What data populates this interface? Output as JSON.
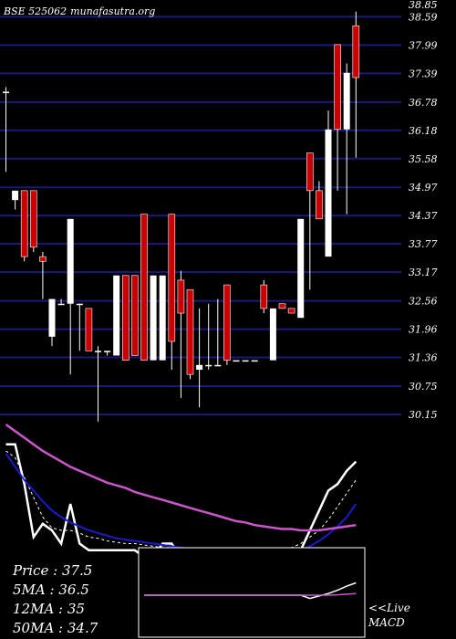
{
  "header": {
    "symbol": "BSE 525062",
    "site": "munafasutra.org"
  },
  "colors": {
    "background": "#000000",
    "gridline": "#1a1a7a",
    "up_candle": "#ffffff",
    "down_candle": "#cc0000",
    "fast_line": "#ffffff",
    "ma_slow": "#1a1acc",
    "ma_long": "#cc55cc",
    "macd_line": "#ffffff",
    "macd_signal": "#cc55cc",
    "macd_box": "#ffffff"
  },
  "chart_data": [
    {
      "type": "candlestick",
      "title": "BSE 525062",
      "y_ticks": [
        38.85,
        38.59,
        37.99,
        37.39,
        36.78,
        36.18,
        35.58,
        34.97,
        34.37,
        33.77,
        33.17,
        32.56,
        31.96,
        31.36,
        30.75,
        30.15
      ],
      "candles": [
        {
          "o": 37.0,
          "h": 37.1,
          "l": 35.3,
          "c": 37.0
        },
        {
          "o": 34.7,
          "h": 34.9,
          "l": 34.5,
          "c": 34.9
        },
        {
          "o": 34.9,
          "h": 34.9,
          "l": 33.4,
          "c": 33.5
        },
        {
          "o": 34.9,
          "h": 34.9,
          "l": 33.6,
          "c": 33.7
        },
        {
          "o": 33.5,
          "h": 33.6,
          "l": 32.6,
          "c": 33.4
        },
        {
          "o": 31.8,
          "h": 32.6,
          "l": 31.6,
          "c": 32.6
        },
        {
          "o": 32.5,
          "h": 32.6,
          "l": 32.5,
          "c": 32.5
        },
        {
          "o": 32.5,
          "h": 34.3,
          "l": 31.0,
          "c": 34.3
        },
        {
          "o": 32.5,
          "h": 32.5,
          "l": 31.5,
          "c": 32.5
        },
        {
          "o": 32.4,
          "h": 32.4,
          "l": 31.5,
          "c": 31.5
        },
        {
          "o": 31.5,
          "h": 31.6,
          "l": 30.0,
          "c": 31.5
        },
        {
          "o": 31.5,
          "h": 31.5,
          "l": 31.4,
          "c": 31.5
        },
        {
          "o": 31.4,
          "h": 33.1,
          "l": 31.4,
          "c": 33.1
        },
        {
          "o": 33.1,
          "h": 33.1,
          "l": 31.3,
          "c": 31.3
        },
        {
          "o": 33.1,
          "h": 33.1,
          "l": 31.4,
          "c": 31.4
        },
        {
          "o": 34.4,
          "h": 34.4,
          "l": 31.3,
          "c": 31.3
        },
        {
          "o": 31.3,
          "h": 33.1,
          "l": 31.3,
          "c": 33.1
        },
        {
          "o": 31.3,
          "h": 33.1,
          "l": 31.3,
          "c": 33.1
        },
        {
          "o": 34.4,
          "h": 34.4,
          "l": 31.1,
          "c": 31.7
        },
        {
          "o": 33.0,
          "h": 33.2,
          "l": 30.5,
          "c": 32.3
        },
        {
          "o": 32.8,
          "h": 32.8,
          "l": 30.9,
          "c": 31.0
        },
        {
          "o": 31.1,
          "h": 32.4,
          "l": 30.3,
          "c": 31.2
        },
        {
          "o": 31.2,
          "h": 32.5,
          "l": 31.1,
          "c": 31.2
        },
        {
          "o": 31.2,
          "h": 32.6,
          "l": 31.2,
          "c": 31.2
        },
        {
          "o": 32.9,
          "h": 32.9,
          "l": 31.2,
          "c": 31.3
        },
        {
          "o": 31.3,
          "h": 31.3,
          "l": 31.3,
          "c": 31.3
        },
        {
          "o": 31.3,
          "h": 31.3,
          "l": 31.3,
          "c": 31.3
        },
        {
          "o": 31.3,
          "h": 31.3,
          "l": 31.3,
          "c": 31.3
        },
        {
          "o": 32.9,
          "h": 33.0,
          "l": 32.3,
          "c": 32.4
        },
        {
          "o": 31.3,
          "h": 32.4,
          "l": 31.3,
          "c": 32.4
        },
        {
          "o": 32.5,
          "h": 32.5,
          "l": 32.4,
          "c": 32.4
        },
        {
          "o": 32.4,
          "h": 32.4,
          "l": 32.3,
          "c": 32.3
        },
        {
          "o": 32.2,
          "h": 34.3,
          "l": 32.2,
          "c": 34.3
        },
        {
          "o": 35.7,
          "h": 35.7,
          "l": 32.8,
          "c": 34.9
        },
        {
          "o": 34.9,
          "h": 35.1,
          "l": 34.3,
          "c": 34.3
        },
        {
          "o": 33.5,
          "h": 36.6,
          "l": 33.5,
          "c": 36.2
        },
        {
          "o": 38.0,
          "h": 38.0,
          "l": 34.9,
          "c": 36.2
        },
        {
          "o": 36.2,
          "h": 37.6,
          "l": 34.4,
          "c": 37.4
        },
        {
          "o": 38.4,
          "h": 38.7,
          "l": 35.6,
          "c": 37.3
        }
      ]
    },
    {
      "type": "line",
      "series": [
        {
          "role": "fast",
          "values": [
            0.15,
            0.15,
            0.45,
            0.85,
            0.75,
            0.8,
            0.9,
            0.6,
            0.9,
            0.95,
            0.95,
            0.95,
            0.95,
            0.95,
            0.95,
            1.0,
            1.0,
            0.9,
            0.9,
            1.0,
            1.0,
            1.0,
            1.0,
            1.0,
            1.0,
            1.0,
            1.0,
            1.0,
            1.0,
            1.0,
            0.98,
            0.96,
            0.95,
            0.8,
            0.65,
            0.5,
            0.45,
            0.35,
            0.28
          ]
        },
        {
          "role": "signal",
          "values": [
            0.2,
            0.25,
            0.4,
            0.55,
            0.7,
            0.78,
            0.8,
            0.8,
            0.82,
            0.85,
            0.86,
            0.88,
            0.89,
            0.9,
            0.9,
            0.91,
            0.92,
            0.93,
            0.93,
            0.94,
            0.95,
            0.96,
            0.97,
            0.98,
            0.98,
            0.99,
            0.99,
            0.99,
            0.99,
            0.98,
            0.96,
            0.93,
            0.9,
            0.85,
            0.8,
            0.72,
            0.62,
            0.52,
            0.42
          ]
        },
        {
          "role": "ma_slow",
          "values": [
            0.22,
            0.32,
            0.42,
            0.5,
            0.58,
            0.65,
            0.7,
            0.74,
            0.77,
            0.8,
            0.82,
            0.84,
            0.86,
            0.87,
            0.88,
            0.89,
            0.9,
            0.91,
            0.92,
            0.93,
            0.94,
            0.95,
            0.96,
            0.97,
            0.98,
            0.99,
            1.0,
            1.0,
            1.0,
            1.0,
            0.99,
            0.97,
            0.95,
            0.92,
            0.88,
            0.83,
            0.77,
            0.7,
            0.6
          ]
        },
        {
          "role": "ma_long",
          "values": [
            0.0,
            0.05,
            0.1,
            0.15,
            0.2,
            0.24,
            0.28,
            0.32,
            0.35,
            0.38,
            0.41,
            0.44,
            0.46,
            0.48,
            0.51,
            0.53,
            0.55,
            0.57,
            0.59,
            0.61,
            0.63,
            0.65,
            0.67,
            0.69,
            0.71,
            0.73,
            0.74,
            0.76,
            0.77,
            0.78,
            0.79,
            0.79,
            0.8,
            0.8,
            0.8,
            0.79,
            0.78,
            0.77,
            0.76
          ]
        }
      ]
    },
    {
      "type": "line",
      "title": "MACD",
      "series": [
        {
          "role": "macd",
          "values": [
            0.0,
            0.0,
            0.0,
            0.0,
            0.0,
            0.0,
            0.0,
            0.0,
            0.0,
            0.0,
            0.0,
            0.0,
            0.0,
            0.0,
            0.0,
            0.0,
            0.0,
            0.0,
            0.0,
            0.0,
            0.0,
            0.0,
            0.0,
            0.0,
            0.0,
            0.0,
            0.0,
            0.0,
            0.0,
            0.0,
            0.0,
            0.0,
            0.0,
            -0.2,
            -0.05,
            0.1,
            0.3,
            0.55,
            0.75
          ]
        },
        {
          "role": "signal",
          "values": [
            0.0,
            0.0,
            0.0,
            0.0,
            0.0,
            0.0,
            0.0,
            0.0,
            0.0,
            0.0,
            0.0,
            0.0,
            0.0,
            0.0,
            0.0,
            0.0,
            0.0,
            0.0,
            0.0,
            0.0,
            0.0,
            0.0,
            0.0,
            0.0,
            0.0,
            0.0,
            0.0,
            0.0,
            0.0,
            0.0,
            0.0,
            0.0,
            0.0,
            0.0,
            0.0,
            0.0,
            0.02,
            0.06,
            0.1
          ]
        }
      ]
    }
  ],
  "summary": [
    {
      "label": "Price",
      "value": "37.5"
    },
    {
      "label": "5MA",
      "value": "36.5"
    },
    {
      "label": "12MA",
      "value": "35"
    },
    {
      "label": "50MA",
      "value": "34.7"
    }
  ],
  "macd_label": {
    "prefix": "<<Live",
    "name": "MACD"
  }
}
